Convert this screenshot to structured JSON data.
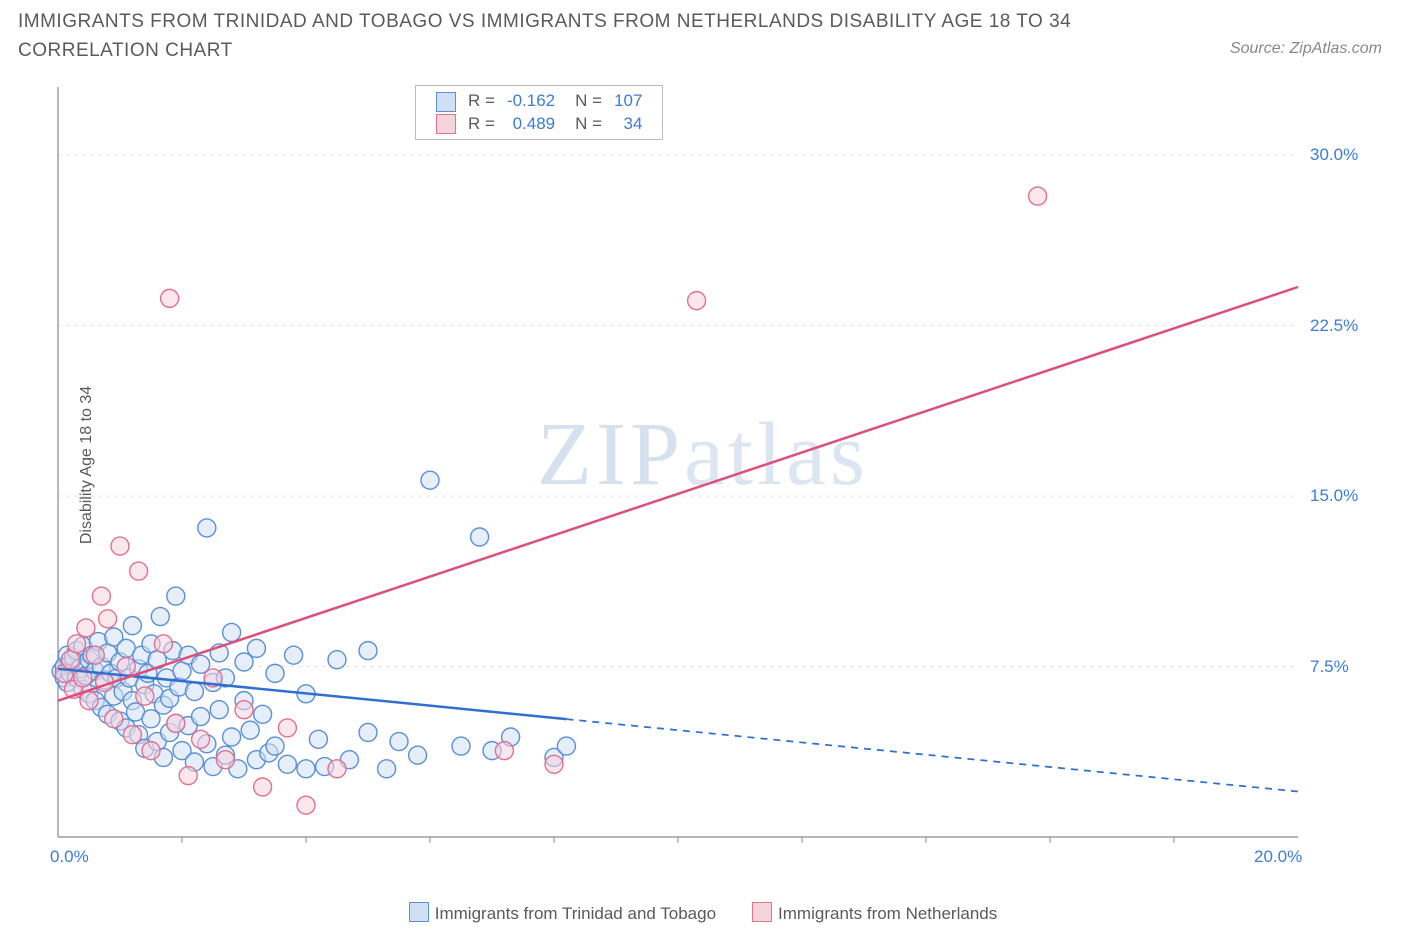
{
  "title": "IMMIGRANTS FROM TRINIDAD AND TOBAGO VS IMMIGRANTS FROM NETHERLANDS DISABILITY AGE 18 TO 34 CORRELATION CHART",
  "source": "Source: ZipAtlas.com",
  "ylabel": "Disability Age 18 to 34",
  "watermark_a": "ZIP",
  "watermark_b": "atlas",
  "chart": {
    "type": "scatter-with-trend",
    "xlim": [
      0,
      20
    ],
    "ylim": [
      0,
      33
    ],
    "xtick_labels": [
      "0.0%",
      "20.0%"
    ],
    "xtick_positions": [
      0,
      20
    ],
    "xtick_minor": [
      2,
      4,
      6,
      8,
      10,
      12,
      14,
      16,
      18
    ],
    "ytick_labels": [
      "7.5%",
      "15.0%",
      "22.5%",
      "30.0%"
    ],
    "ytick_positions": [
      7.5,
      15,
      22.5,
      30
    ],
    "grid_color": "#e6e6e6",
    "axis_color": "#888888",
    "background": "#ffffff",
    "marker_radius": 9,
    "marker_stroke_width": 1.4,
    "series": [
      {
        "name": "Immigrants from Trinidad and Tobago",
        "fill": "#cfe0f4",
        "stroke": "#5b8fd6",
        "fill_opacity": 0.55,
        "trend": {
          "x1": 0,
          "y1": 7.4,
          "x2": 20,
          "y2": 2.0,
          "solid_until_x": 8.2,
          "color": "#2f6fd0",
          "width": 2.5
        },
        "R": "-0.162",
        "N": "107",
        "points": [
          [
            0.05,
            7.3
          ],
          [
            0.1,
            7.5
          ],
          [
            0.1,
            7.0
          ],
          [
            0.15,
            8.0
          ],
          [
            0.15,
            6.8
          ],
          [
            0.2,
            7.6
          ],
          [
            0.2,
            7.2
          ],
          [
            0.25,
            7.9
          ],
          [
            0.3,
            7.0
          ],
          [
            0.3,
            8.2
          ],
          [
            0.35,
            7.4
          ],
          [
            0.4,
            6.5
          ],
          [
            0.4,
            8.4
          ],
          [
            0.45,
            7.1
          ],
          [
            0.5,
            7.8
          ],
          [
            0.5,
            6.3
          ],
          [
            0.55,
            8.0
          ],
          [
            0.6,
            7.3
          ],
          [
            0.6,
            6.0
          ],
          [
            0.65,
            8.6
          ],
          [
            0.7,
            7.5
          ],
          [
            0.7,
            5.7
          ],
          [
            0.75,
            6.9
          ],
          [
            0.8,
            8.1
          ],
          [
            0.8,
            5.4
          ],
          [
            0.85,
            7.2
          ],
          [
            0.9,
            6.2
          ],
          [
            0.9,
            8.8
          ],
          [
            0.95,
            7.0
          ],
          [
            1.0,
            5.1
          ],
          [
            1.0,
            7.7
          ],
          [
            1.05,
            6.4
          ],
          [
            1.1,
            8.3
          ],
          [
            1.1,
            4.8
          ],
          [
            1.15,
            7.0
          ],
          [
            1.2,
            6.0
          ],
          [
            1.2,
            9.3
          ],
          [
            1.25,
            5.5
          ],
          [
            1.3,
            7.4
          ],
          [
            1.3,
            4.5
          ],
          [
            1.35,
            8.0
          ],
          [
            1.4,
            6.7
          ],
          [
            1.4,
            3.9
          ],
          [
            1.45,
            7.2
          ],
          [
            1.5,
            5.2
          ],
          [
            1.5,
            8.5
          ],
          [
            1.55,
            6.3
          ],
          [
            1.6,
            4.2
          ],
          [
            1.6,
            7.8
          ],
          [
            1.65,
            9.7
          ],
          [
            1.7,
            5.8
          ],
          [
            1.7,
            3.5
          ],
          [
            1.75,
            7.0
          ],
          [
            1.8,
            6.1
          ],
          [
            1.8,
            4.6
          ],
          [
            1.85,
            8.2
          ],
          [
            1.9,
            5.0
          ],
          [
            1.9,
            10.6
          ],
          [
            1.95,
            6.6
          ],
          [
            2.0,
            3.8
          ],
          [
            2.0,
            7.3
          ],
          [
            2.1,
            4.9
          ],
          [
            2.1,
            8.0
          ],
          [
            2.2,
            3.3
          ],
          [
            2.2,
            6.4
          ],
          [
            2.3,
            5.3
          ],
          [
            2.3,
            7.6
          ],
          [
            2.4,
            4.1
          ],
          [
            2.4,
            13.6
          ],
          [
            2.5,
            3.1
          ],
          [
            2.5,
            6.8
          ],
          [
            2.6,
            5.6
          ],
          [
            2.6,
            8.1
          ],
          [
            2.7,
            3.6
          ],
          [
            2.7,
            7.0
          ],
          [
            2.8,
            4.4
          ],
          [
            2.8,
            9.0
          ],
          [
            2.9,
            3.0
          ],
          [
            3.0,
            6.0
          ],
          [
            3.0,
            7.7
          ],
          [
            3.1,
            4.7
          ],
          [
            3.2,
            3.4
          ],
          [
            3.2,
            8.3
          ],
          [
            3.3,
            5.4
          ],
          [
            3.4,
            3.7
          ],
          [
            3.5,
            7.2
          ],
          [
            3.5,
            4.0
          ],
          [
            3.7,
            3.2
          ],
          [
            3.8,
            8.0
          ],
          [
            4.0,
            3.0
          ],
          [
            4.0,
            6.3
          ],
          [
            4.2,
            4.3
          ],
          [
            4.3,
            3.1
          ],
          [
            4.5,
            7.8
          ],
          [
            4.7,
            3.4
          ],
          [
            5.0,
            8.2
          ],
          [
            5.0,
            4.6
          ],
          [
            5.3,
            3.0
          ],
          [
            5.5,
            4.2
          ],
          [
            5.8,
            3.6
          ],
          [
            6.0,
            15.7
          ],
          [
            6.5,
            4.0
          ],
          [
            6.8,
            13.2
          ],
          [
            7.0,
            3.8
          ],
          [
            7.3,
            4.4
          ],
          [
            8.0,
            3.5
          ],
          [
            8.2,
            4.0
          ]
        ]
      },
      {
        "name": "Immigrants from Netherlands",
        "fill": "#f6d4dc",
        "stroke": "#e36f93",
        "fill_opacity": 0.55,
        "trend": {
          "x1": 0,
          "y1": 6.0,
          "x2": 20,
          "y2": 24.2,
          "solid_until_x": 20,
          "color": "#e14d7b",
          "width": 2.5
        },
        "R": "0.489",
        "N": "34",
        "points": [
          [
            0.1,
            7.2
          ],
          [
            0.2,
            7.8
          ],
          [
            0.25,
            6.5
          ],
          [
            0.3,
            8.5
          ],
          [
            0.4,
            7.0
          ],
          [
            0.45,
            9.2
          ],
          [
            0.5,
            6.0
          ],
          [
            0.6,
            8.0
          ],
          [
            0.7,
            10.6
          ],
          [
            0.75,
            6.8
          ],
          [
            0.8,
            9.6
          ],
          [
            0.9,
            5.2
          ],
          [
            1.0,
            12.8
          ],
          [
            1.1,
            7.5
          ],
          [
            1.2,
            4.5
          ],
          [
            1.3,
            11.7
          ],
          [
            1.4,
            6.2
          ],
          [
            1.5,
            3.8
          ],
          [
            1.7,
            8.5
          ],
          [
            1.8,
            23.7
          ],
          [
            1.9,
            5.0
          ],
          [
            2.1,
            2.7
          ],
          [
            2.3,
            4.3
          ],
          [
            2.5,
            7.0
          ],
          [
            2.7,
            3.4
          ],
          [
            3.0,
            5.6
          ],
          [
            3.3,
            2.2
          ],
          [
            3.7,
            4.8
          ],
          [
            4.0,
            1.4
          ],
          [
            4.5,
            3.0
          ],
          [
            7.2,
            3.8
          ],
          [
            8.0,
            3.2
          ],
          [
            10.3,
            23.6
          ],
          [
            15.8,
            28.2
          ]
        ]
      }
    ]
  },
  "legend_top": {
    "rows": [
      {
        "sw_fill": "#cfe0f4",
        "sw_stroke": "#5b8fd6",
        "r_label": "R =",
        "r": "-0.162",
        "n_label": "N =",
        "n": "107"
      },
      {
        "sw_fill": "#f6d4dc",
        "sw_stroke": "#e36f93",
        "r_label": "R =",
        "r": "0.489",
        "n_label": "N =",
        "n": "  34"
      }
    ]
  },
  "legend_bottom": [
    {
      "sw_fill": "#cfe0f4",
      "sw_stroke": "#5b8fd6",
      "label": "Immigrants from Trinidad and Tobago"
    },
    {
      "sw_fill": "#f6d4dc",
      "sw_stroke": "#e36f93",
      "label": "Immigrants from Netherlands"
    }
  ]
}
